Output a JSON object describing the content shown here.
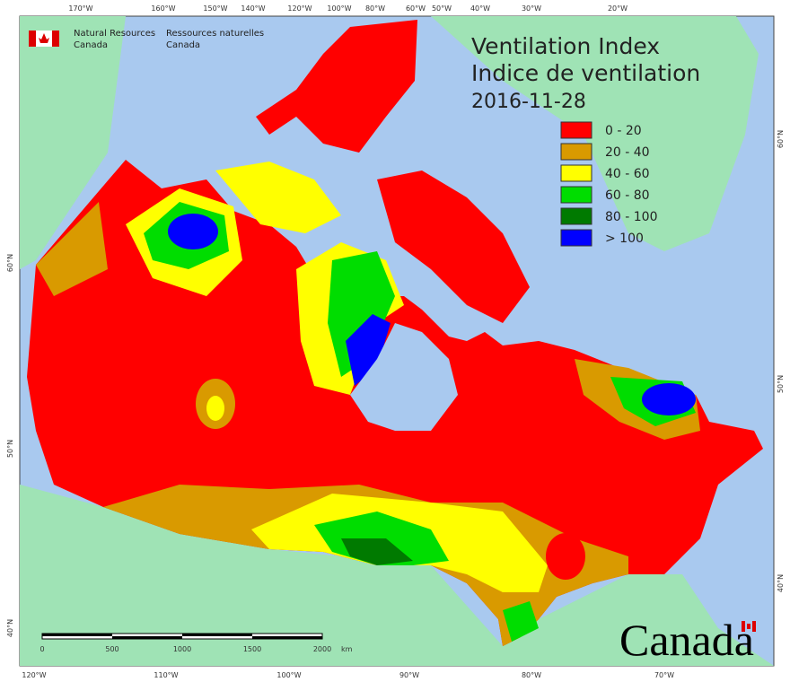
{
  "header": {
    "title_en": "Ventilation Index",
    "title_fr": "Indice de ventilation",
    "date": "2016-11-28"
  },
  "agency": {
    "en": [
      "Natural Resources",
      "Canada"
    ],
    "fr": [
      "Ressources naturelles",
      "Canada"
    ]
  },
  "legend": [
    {
      "label": "0 - 20",
      "color": "#ff0000"
    },
    {
      "label": "20 - 40",
      "color": "#d99a00"
    },
    {
      "label": "40 - 60",
      "color": "#ffff00"
    },
    {
      "label": "60 - 80",
      "color": "#00dd00"
    },
    {
      "label": "80 - 100",
      "color": "#007a00"
    },
    {
      "label": "> 100",
      "color": "#0000ff"
    }
  ],
  "top_longitudes": [
    "170°W",
    "160°W",
    "150°W",
    "140°W",
    "120°W",
    "100°W",
    "80°W",
    "60°W",
    "50°W",
    "40°W",
    "30°W",
    "20°W"
  ],
  "bottom_longitudes": [
    "120°W",
    "110°W",
    "100°W",
    "90°W",
    "80°W",
    "70°W"
  ],
  "left_latitudes": [
    "60°N",
    "50°N",
    "40°N"
  ],
  "right_latitudes": [
    "60°N",
    "50°N",
    "40°N"
  ],
  "scale_bar": {
    "labels": [
      "0",
      "500",
      "1000",
      "1500",
      "2000"
    ],
    "unit": "km"
  },
  "wordmark": "Canada"
}
